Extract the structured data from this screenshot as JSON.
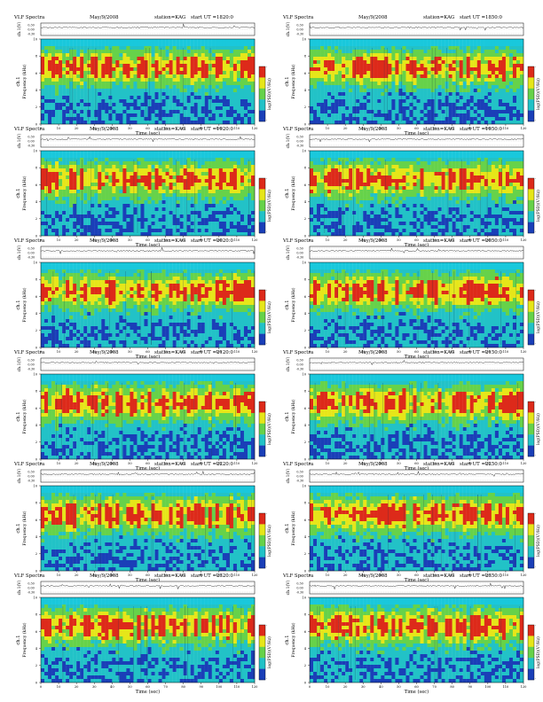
{
  "page": {
    "panel_header": {
      "title": "VLF Spectra",
      "date": "May/9/2008",
      "station": "station=KAG",
      "start_prefix": "start  UT ="
    },
    "labels": {
      "ch_axis": "ch.1(V)",
      "spec_axis_line1": "ch.1",
      "spec_axis_line2": "Frequency  (kHz)",
      "x_axis": "Time  (sec)",
      "colorbar": "log(PSD)(V²/Hz)"
    },
    "colors": {
      "saturated": "#dd2a1a",
      "high": "#e6e619",
      "mid": "#66d24a",
      "low": "#22c2c7",
      "band_top": "#19c8dc",
      "minimum": "#1a3fb8",
      "trace": "#222222"
    }
  },
  "chart_data": [
    {
      "type": "heatmap",
      "start_time": "1820:0",
      "x_label": "Time  (sec)",
      "y_label": "Frequency  (kHz)",
      "x_range": [
        0,
        120
      ],
      "y_range": [
        0,
        10
      ],
      "x_ticks": [
        0,
        10,
        20,
        30,
        40,
        50,
        60,
        70,
        80,
        90,
        100,
        110,
        120
      ],
      "y_ticks": [
        0,
        2,
        4,
        6,
        8,
        10
      ],
      "ch_ticks": [
        "0.30",
        "0.00",
        "-0.30"
      ],
      "colorbar": {
        "label": "log(PSD)(V²/Hz)",
        "ticks": [
          "-",
          "-"
        ],
        "colors": [
          "#1a3fb8",
          "#22c2c7",
          "#66d24a",
          "#e6e619",
          "#dd2a1a"
        ]
      }
    },
    {
      "type": "heatmap",
      "start_time": "1850:0",
      "x_label": "Time  (sec)",
      "y_label": "Frequency  (kHz)",
      "x_range": [
        0,
        120
      ],
      "y_range": [
        0,
        10
      ],
      "x_ticks": [
        0,
        10,
        20,
        30,
        40,
        50,
        60,
        70,
        80,
        90,
        100,
        110,
        120
      ],
      "y_ticks": [
        0,
        2,
        4,
        6,
        8,
        10
      ],
      "ch_ticks": [
        "0.30",
        "0.00",
        "-0.30"
      ],
      "colorbar": {
        "label": "log(PSD)(V²/Hz)",
        "ticks": [
          "-",
          "-"
        ],
        "colors": [
          "#1a3fb8",
          "#22c2c7",
          "#66d24a",
          "#e6e619",
          "#dd2a1a"
        ]
      }
    },
    {
      "type": "heatmap",
      "start_time": "1920:0",
      "x_label": "Time  (sec)",
      "y_label": "Frequency  (kHz)",
      "x_range": [
        0,
        120
      ],
      "y_range": [
        0,
        10
      ],
      "x_ticks": [
        0,
        10,
        20,
        30,
        40,
        50,
        60,
        70,
        80,
        90,
        100,
        110,
        120
      ],
      "y_ticks": [
        0,
        2,
        4,
        6,
        8,
        10
      ],
      "ch_ticks": [
        "0.30",
        "0.00",
        "-0.30"
      ],
      "colorbar": {
        "label": "log(PSD)(V²/Hz)",
        "ticks": [
          "-",
          "-"
        ],
        "colors": [
          "#1a3fb8",
          "#22c2c7",
          "#66d24a",
          "#e6e619",
          "#dd2a1a"
        ]
      }
    },
    {
      "type": "heatmap",
      "start_time": "1950:0",
      "x_label": "Time  (sec)",
      "y_label": "Frequency  (kHz)",
      "x_range": [
        0,
        120
      ],
      "y_range": [
        0,
        10
      ],
      "x_ticks": [
        0,
        10,
        20,
        30,
        40,
        50,
        60,
        70,
        80,
        90,
        100,
        110,
        120
      ],
      "y_ticks": [
        0,
        2,
        4,
        6,
        8,
        10
      ],
      "ch_ticks": [
        "0.30",
        "0.00",
        "-0.30"
      ],
      "colorbar": {
        "label": "log(PSD)(V²/Hz)",
        "ticks": [
          "-",
          "-"
        ],
        "colors": [
          "#1a3fb8",
          "#22c2c7",
          "#66d24a",
          "#e6e619",
          "#dd2a1a"
        ]
      }
    },
    {
      "type": "heatmap",
      "start_time": "2020:0",
      "x_label": "Time  (sec)",
      "y_label": "Frequency  (kHz)",
      "x_range": [
        0,
        120
      ],
      "y_range": [
        0,
        10
      ],
      "x_ticks": [
        0,
        10,
        20,
        30,
        40,
        50,
        60,
        70,
        80,
        90,
        100,
        110,
        120
      ],
      "y_ticks": [
        0,
        2,
        4,
        6,
        8,
        10
      ],
      "ch_ticks": [
        "0.30",
        "0.00",
        "-0.30"
      ],
      "colorbar": {
        "label": "log(PSD)(V²/Hz)",
        "ticks": [
          "-",
          "-"
        ],
        "colors": [
          "#1a3fb8",
          "#22c2c7",
          "#66d24a",
          "#e6e619",
          "#dd2a1a"
        ]
      }
    },
    {
      "type": "heatmap",
      "start_time": "2050:0",
      "x_label": "Time  (sec)",
      "y_label": "Frequency  (kHz)",
      "x_range": [
        0,
        120
      ],
      "y_range": [
        0,
        10
      ],
      "x_ticks": [
        0,
        10,
        20,
        30,
        40,
        50,
        60,
        70,
        80,
        90,
        100,
        110,
        120
      ],
      "y_ticks": [
        0,
        2,
        4,
        6,
        8,
        10
      ],
      "ch_ticks": [
        "0.30",
        "0.00",
        "-0.30"
      ],
      "colorbar": {
        "label": "log(PSD)(V²/Hz)",
        "ticks": [
          "-",
          "-"
        ],
        "colors": [
          "#1a3fb8",
          "#22c2c7",
          "#66d24a",
          "#e6e619",
          "#dd2a1a"
        ]
      }
    },
    {
      "type": "heatmap",
      "start_time": "2120:0",
      "x_label": "Time  (sec)",
      "y_label": "Frequency  (kHz)",
      "x_range": [
        0,
        120
      ],
      "y_range": [
        0,
        10
      ],
      "x_ticks": [
        0,
        10,
        20,
        30,
        40,
        50,
        60,
        70,
        80,
        90,
        100,
        110,
        120
      ],
      "y_ticks": [
        0,
        2,
        4,
        6,
        8,
        10
      ],
      "ch_ticks": [
        "0.30",
        "0.00",
        "-0.30"
      ],
      "colorbar": {
        "label": "log(PSD)(V²/Hz)",
        "ticks": [
          "-",
          "-"
        ],
        "colors": [
          "#1a3fb8",
          "#22c2c7",
          "#66d24a",
          "#e6e619",
          "#dd2a1a"
        ]
      }
    },
    {
      "type": "heatmap",
      "start_time": "2150:0",
      "x_label": "Time  (sec)",
      "y_label": "Frequency  (kHz)",
      "x_range": [
        0,
        120
      ],
      "y_range": [
        0,
        10
      ],
      "x_ticks": [
        0,
        10,
        20,
        30,
        40,
        50,
        60,
        70,
        80,
        90,
        100,
        110,
        120
      ],
      "y_ticks": [
        0,
        2,
        4,
        6,
        8,
        10
      ],
      "ch_ticks": [
        "0.30",
        "0.00",
        "-0.30"
      ],
      "colorbar": {
        "label": "log(PSD)(V²/Hz)",
        "ticks": [
          "-",
          "-"
        ],
        "colors": [
          "#1a3fb8",
          "#22c2c7",
          "#66d24a",
          "#e6e619",
          "#dd2a1a"
        ]
      }
    },
    {
      "type": "heatmap",
      "start_time": "2220:0",
      "x_label": "Time  (sec)",
      "y_label": "Frequency  (kHz)",
      "x_range": [
        0,
        120
      ],
      "y_range": [
        0,
        10
      ],
      "x_ticks": [
        0,
        10,
        20,
        30,
        40,
        50,
        60,
        70,
        80,
        90,
        100,
        110,
        120
      ],
      "y_ticks": [
        0,
        2,
        4,
        6,
        8,
        10
      ],
      "ch_ticks": [
        "0.30",
        "0.00",
        "-0.30"
      ],
      "colorbar": {
        "label": "log(PSD)(V²/Hz)",
        "ticks": [
          "-",
          "-"
        ],
        "colors": [
          "#1a3fb8",
          "#22c2c7",
          "#66d24a",
          "#e6e619",
          "#dd2a1a"
        ]
      }
    },
    {
      "type": "heatmap",
      "start_time": "2250:0",
      "x_label": "Time  (sec)",
      "y_label": "Frequency  (kHz)",
      "x_range": [
        0,
        120
      ],
      "y_range": [
        0,
        10
      ],
      "x_ticks": [
        0,
        10,
        20,
        30,
        40,
        50,
        60,
        70,
        80,
        90,
        100,
        110,
        120
      ],
      "y_ticks": [
        0,
        2,
        4,
        6,
        8,
        10
      ],
      "ch_ticks": [
        "0.30",
        "0.00",
        "-0.30"
      ],
      "colorbar": {
        "label": "log(PSD)(V²/Hz)",
        "ticks": [
          "-",
          "-"
        ],
        "colors": [
          "#1a3fb8",
          "#22c2c7",
          "#66d24a",
          "#e6e619",
          "#dd2a1a"
        ]
      }
    },
    {
      "type": "heatmap",
      "start_time": "2320:0",
      "x_label": "Time  (sec)",
      "y_label": "Frequency  (kHz)",
      "x_range": [
        0,
        120
      ],
      "y_range": [
        0,
        10
      ],
      "x_ticks": [
        0,
        10,
        20,
        30,
        40,
        50,
        60,
        70,
        80,
        90,
        100,
        110,
        120
      ],
      "y_ticks": [
        0,
        2,
        4,
        6,
        8,
        10
      ],
      "ch_ticks": [
        "0.30",
        "0.00",
        "-0.30"
      ],
      "colorbar": {
        "label": "log(PSD)(V²/Hz)",
        "ticks": [
          "-",
          "-"
        ],
        "colors": [
          "#1a3fb8",
          "#22c2c7",
          "#66d24a",
          "#e6e619",
          "#dd2a1a"
        ]
      }
    },
    {
      "type": "heatmap",
      "start_time": "2350:0",
      "x_label": "Time  (sec)",
      "y_label": "Frequency  (kHz)",
      "x_range": [
        0,
        120
      ],
      "y_range": [
        0,
        10
      ],
      "x_ticks": [
        0,
        10,
        20,
        30,
        40,
        50,
        60,
        70,
        80,
        90,
        100,
        110,
        120
      ],
      "y_ticks": [
        0,
        2,
        4,
        6,
        8,
        10
      ],
      "ch_ticks": [
        "0.30",
        "0.00",
        "-0.30"
      ],
      "colorbar": {
        "label": "log(PSD)(V²/Hz)",
        "ticks": [
          "-",
          "-"
        ],
        "colors": [
          "#1a3fb8",
          "#22c2c7",
          "#66d24a",
          "#e6e619",
          "#dd2a1a"
        ]
      }
    }
  ]
}
